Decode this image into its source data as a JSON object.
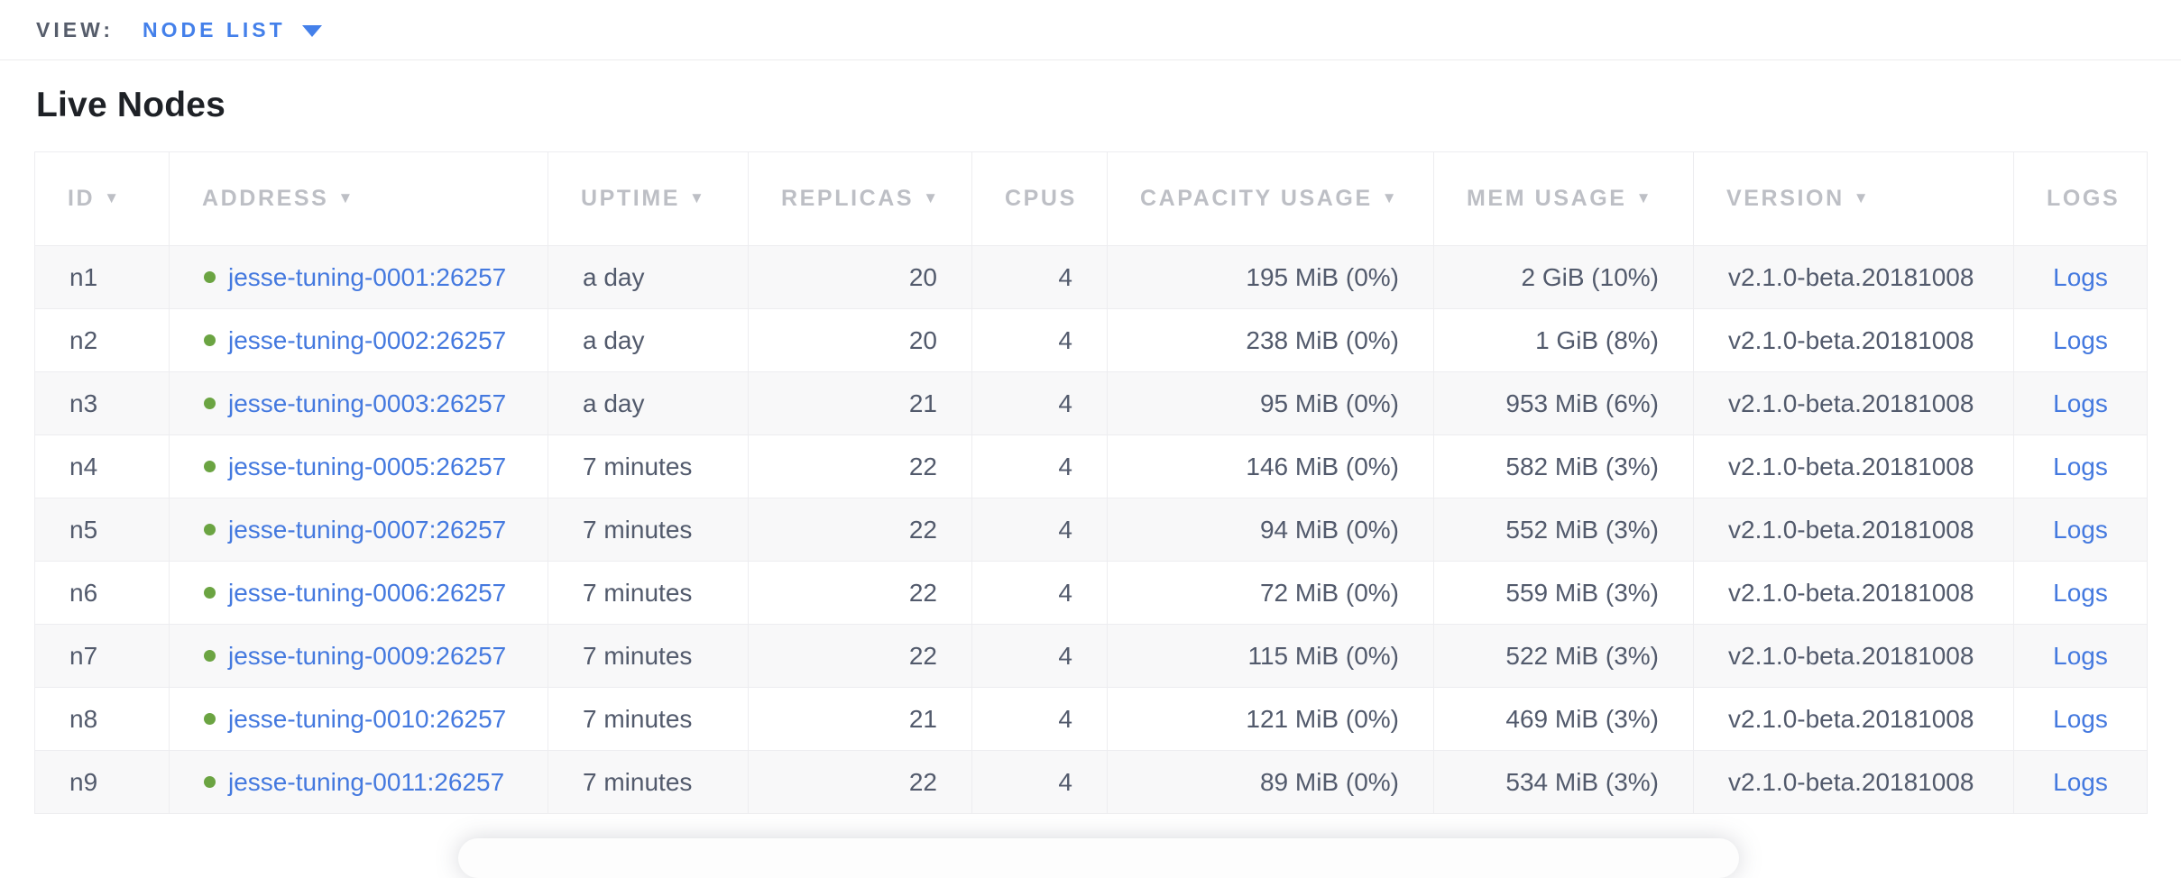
{
  "view_bar": {
    "label": "VIEW:",
    "selected_view": "NODE LIST"
  },
  "page": {
    "title": "Live Nodes"
  },
  "colors": {
    "view_link": "#4480EA",
    "table_link": "#4479DF",
    "live_dot": "#6BA442",
    "header_text": "#BDBFC5",
    "cell_text": "#525A6C"
  },
  "table": {
    "columns": [
      {
        "id": "id",
        "label": "ID",
        "sortable": true
      },
      {
        "id": "address",
        "label": "ADDRESS",
        "sortable": true
      },
      {
        "id": "uptime",
        "label": "UPTIME",
        "sortable": true
      },
      {
        "id": "replicas",
        "label": "REPLICAS",
        "sortable": true
      },
      {
        "id": "cpus",
        "label": "CPUS",
        "sortable": false
      },
      {
        "id": "capacity",
        "label": "CAPACITY USAGE",
        "sortable": true
      },
      {
        "id": "mem",
        "label": "MEM USAGE",
        "sortable": true
      },
      {
        "id": "version",
        "label": "VERSION",
        "sortable": true
      },
      {
        "id": "logs",
        "label": "LOGS",
        "sortable": false
      }
    ],
    "rows": [
      {
        "id": "n1",
        "status": "live",
        "address": "jesse-tuning-0001:26257",
        "uptime": "a day",
        "replicas": "20",
        "cpus": "4",
        "capacity": "195 MiB (0%)",
        "mem": "2 GiB (10%)",
        "version": "v2.1.0-beta.20181008",
        "logs": "Logs"
      },
      {
        "id": "n2",
        "status": "live",
        "address": "jesse-tuning-0002:26257",
        "uptime": "a day",
        "replicas": "20",
        "cpus": "4",
        "capacity": "238 MiB (0%)",
        "mem": "1 GiB (8%)",
        "version": "v2.1.0-beta.20181008",
        "logs": "Logs"
      },
      {
        "id": "n3",
        "status": "live",
        "address": "jesse-tuning-0003:26257",
        "uptime": "a day",
        "replicas": "21",
        "cpus": "4",
        "capacity": "95 MiB (0%)",
        "mem": "953 MiB (6%)",
        "version": "v2.1.0-beta.20181008",
        "logs": "Logs"
      },
      {
        "id": "n4",
        "status": "live",
        "address": "jesse-tuning-0005:26257",
        "uptime": "7 minutes",
        "replicas": "22",
        "cpus": "4",
        "capacity": "146 MiB (0%)",
        "mem": "582 MiB (3%)",
        "version": "v2.1.0-beta.20181008",
        "logs": "Logs"
      },
      {
        "id": "n5",
        "status": "live",
        "address": "jesse-tuning-0007:26257",
        "uptime": "7 minutes",
        "replicas": "22",
        "cpus": "4",
        "capacity": "94 MiB (0%)",
        "mem": "552 MiB (3%)",
        "version": "v2.1.0-beta.20181008",
        "logs": "Logs"
      },
      {
        "id": "n6",
        "status": "live",
        "address": "jesse-tuning-0006:26257",
        "uptime": "7 minutes",
        "replicas": "22",
        "cpus": "4",
        "capacity": "72 MiB (0%)",
        "mem": "559 MiB (3%)",
        "version": "v2.1.0-beta.20181008",
        "logs": "Logs"
      },
      {
        "id": "n7",
        "status": "live",
        "address": "jesse-tuning-0009:26257",
        "uptime": "7 minutes",
        "replicas": "22",
        "cpus": "4",
        "capacity": "115 MiB (0%)",
        "mem": "522 MiB (3%)",
        "version": "v2.1.0-beta.20181008",
        "logs": "Logs"
      },
      {
        "id": "n8",
        "status": "live",
        "address": "jesse-tuning-0010:26257",
        "uptime": "7 minutes",
        "replicas": "21",
        "cpus": "4",
        "capacity": "121 MiB (0%)",
        "mem": "469 MiB (3%)",
        "version": "v2.1.0-beta.20181008",
        "logs": "Logs"
      },
      {
        "id": "n9",
        "status": "live",
        "address": "jesse-tuning-0011:26257",
        "uptime": "7 minutes",
        "replicas": "22",
        "cpus": "4",
        "capacity": "89 MiB (0%)",
        "mem": "534 MiB (3%)",
        "version": "v2.1.0-beta.20181008",
        "logs": "Logs"
      }
    ]
  }
}
